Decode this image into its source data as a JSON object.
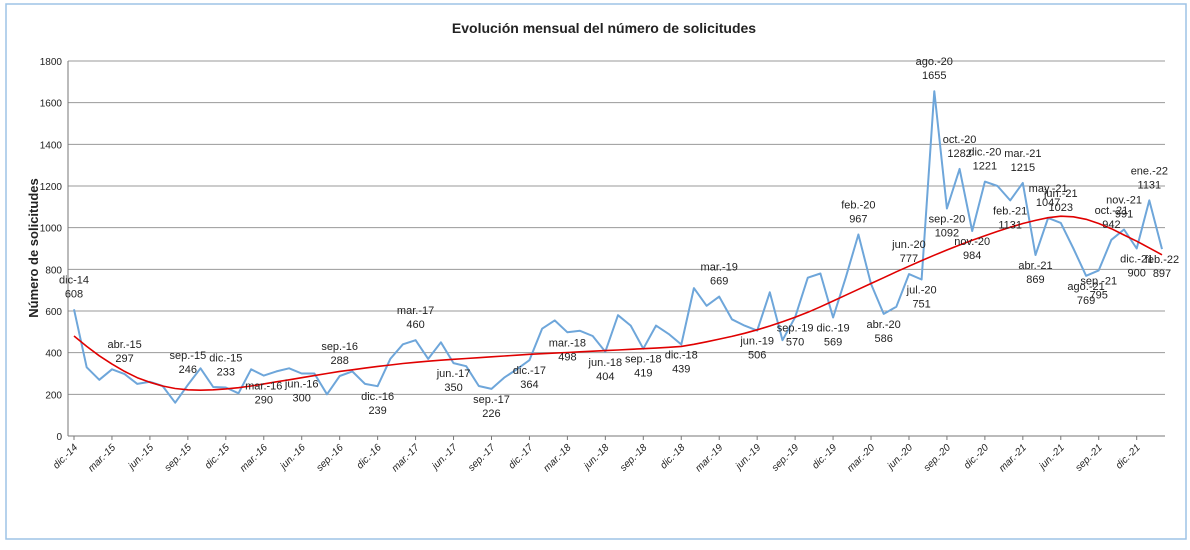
{
  "chart_data": {
    "type": "line",
    "title": "Evolución mensual del número de solicitudes",
    "y_label": "Número de solicitudes",
    "categories": [
      "dic.-14",
      null,
      null,
      "mar.-15",
      null,
      null,
      "jun.-15",
      null,
      null,
      "sep.-15",
      null,
      null,
      "dic.-15",
      null,
      null,
      "mar.-16",
      null,
      null,
      "jun.-16",
      null,
      null,
      "sep.-16",
      null,
      null,
      "dic.-16",
      null,
      null,
      "mar.-17",
      null,
      null,
      "jun.-17",
      null,
      null,
      "sep.-17",
      null,
      null,
      "dic.-17",
      null,
      null,
      "mar.-18",
      null,
      null,
      "jun.-18",
      null,
      null,
      "sep.-18",
      null,
      null,
      "dic.-18",
      null,
      null,
      "mar.-19",
      null,
      null,
      "jun.-19",
      null,
      null,
      "sep.-19",
      null,
      null,
      "dic.-19",
      null,
      null,
      "mar.-20",
      null,
      null,
      "jun.-20",
      null,
      null,
      "sep.-20",
      null,
      null,
      "dic.-20",
      null,
      null,
      "mar.-21",
      null,
      null,
      "jun.-21",
      null,
      null,
      "sep.-21",
      null,
      null,
      "dic.-21",
      null,
      null
    ],
    "point_labels": [
      "dic-14",
      null,
      null,
      null,
      "abr.-15",
      null,
      null,
      null,
      null,
      "sep.-15",
      null,
      null,
      "dic.-15",
      null,
      null,
      "mar.-16",
      null,
      null,
      "jun.-16",
      null,
      null,
      "sep.-16",
      null,
      null,
      "dic.-16",
      null,
      null,
      "mar.-17",
      null,
      null,
      "jun.-17",
      null,
      null,
      "sep.-17",
      null,
      null,
      "dic.-17",
      null,
      null,
      "mar.-18",
      null,
      null,
      "jun.-18",
      null,
      null,
      "sep.-18",
      null,
      null,
      "dic.-18",
      null,
      null,
      "mar.-19",
      null,
      null,
      "jun.-19",
      null,
      null,
      "sep.-19",
      null,
      null,
      "dic.-19",
      null,
      "feb.-20",
      null,
      "abr.-20",
      null,
      "jun.-20",
      "jul.-20",
      "ago.-20",
      "sep.-20",
      "oct.-20",
      "nov.-20",
      "dic.-20",
      null,
      "feb.-21",
      "mar.-21",
      "abr.-21",
      "may.-21",
      "jun.-21",
      null,
      "ago.-21",
      "sep.-21",
      "oct.-21",
      "nov.-21",
      "dic.-21",
      "ene.-22",
      "feb.-22"
    ],
    "series": [
      {
        "color": "#6ea6da",
        "values": [
          608,
          330,
          270,
          320,
          297,
          250,
          260,
          240,
          160,
          246,
          325,
          235,
          233,
          205,
          320,
          290,
          310,
          325,
          300,
          300,
          200,
          288,
          310,
          250,
          239,
          370,
          440,
          460,
          370,
          450,
          350,
          335,
          240,
          226,
          280,
          320,
          364,
          515,
          555,
          498,
          505,
          480,
          404,
          580,
          530,
          419,
          530,
          490,
          439,
          710,
          625,
          669,
          560,
          530,
          506,
          690,
          460,
          570,
          760,
          780,
          569,
          760,
          967,
          730,
          586,
          620,
          777,
          751,
          1655,
          1092,
          1282,
          984,
          1221,
          1200,
          1131,
          1215,
          869,
          1047,
          1023,
          900,
          769,
          795,
          942,
          991,
          900,
          1131,
          897
        ]
      }
    ],
    "trendline": {
      "color": "#e00000",
      "values": [
        480,
        430,
        385,
        345,
        310,
        280,
        258,
        240,
        228,
        222,
        220,
        222,
        226,
        232,
        240,
        250,
        260,
        270,
        280,
        290,
        300,
        310,
        318,
        326,
        334,
        341,
        348,
        354,
        359,
        364,
        368,
        372,
        376,
        380,
        384,
        388,
        392,
        395,
        398,
        401,
        404,
        407,
        410,
        413,
        416,
        419,
        422,
        426,
        430,
        440,
        452,
        465,
        478,
        493,
        510,
        528,
        548,
        570,
        594,
        620,
        648,
        676,
        704,
        732,
        760,
        788,
        815,
        842,
        868,
        893,
        917,
        940,
        961,
        982,
        1002,
        1020,
        1035,
        1048,
        1055,
        1052,
        1040,
        1020,
        995,
        965,
        935,
        903,
        870
      ]
    },
    "ylim": [
      0,
      1800
    ],
    "yticks": [
      0,
      200,
      400,
      600,
      800,
      1000,
      1200,
      1400,
      1600,
      1800
    ],
    "grid": true
  }
}
